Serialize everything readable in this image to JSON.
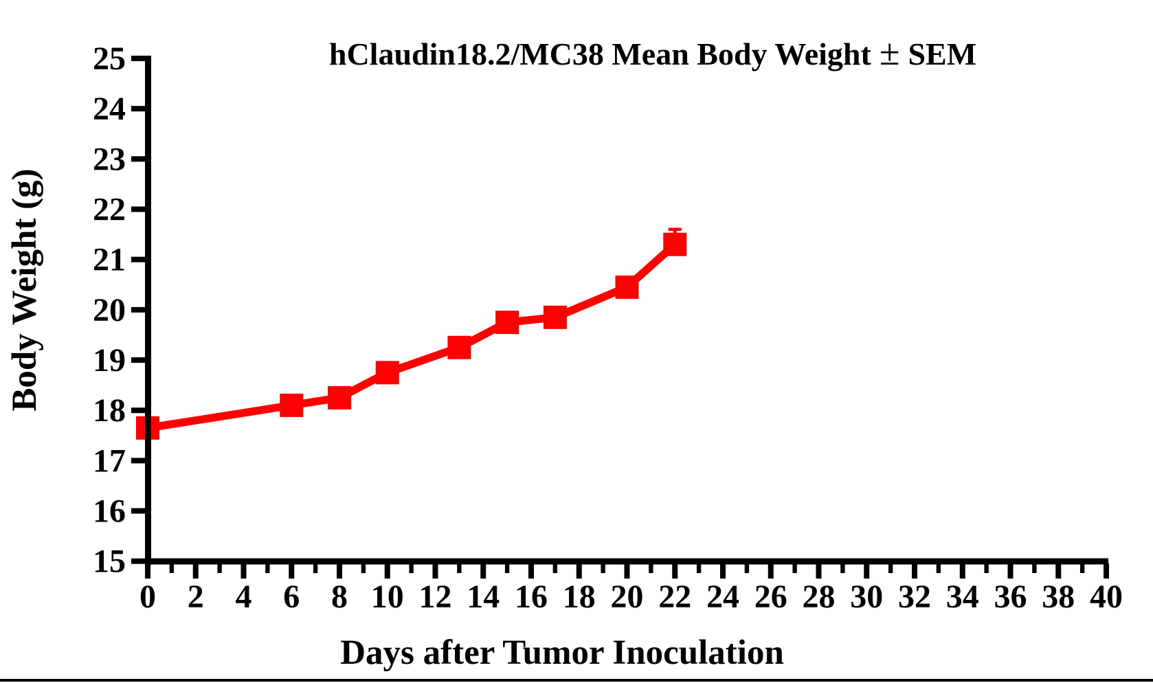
{
  "page": {
    "background": "#ffffff",
    "bottom_border_color": "#000000"
  },
  "chart_data": {
    "type": "line",
    "title": "hClaudin18.2/MC38 Mean Body Weight ± SEM",
    "xlabel": "Days after Tumor Inoculation",
    "ylabel": "Body Weight (g)",
    "xlim": [
      0,
      40
    ],
    "ylim": [
      15,
      25
    ],
    "grid": false,
    "legend": null,
    "axis_color": "#000000",
    "text_color": "#000000",
    "x_major_ticks": [
      0,
      2,
      4,
      6,
      8,
      10,
      12,
      14,
      16,
      18,
      20,
      22,
      24,
      26,
      28,
      30,
      32,
      34,
      36,
      38,
      40
    ],
    "x_minor_ticks": [
      1,
      3,
      5,
      7,
      9,
      11,
      13,
      15,
      17,
      19,
      21,
      23,
      25,
      27,
      29,
      31,
      33,
      35,
      37,
      39
    ],
    "y_ticks": [
      15,
      16,
      17,
      18,
      19,
      20,
      21,
      22,
      23,
      24,
      25
    ],
    "series": [
      {
        "name": "hClaudin18.2/MC38",
        "color": "#ff0000",
        "marker": "square",
        "x": [
          0,
          6,
          8,
          10,
          13,
          15,
          17,
          20,
          22
        ],
        "y": [
          17.65,
          18.1,
          18.25,
          18.75,
          19.25,
          19.75,
          19.85,
          20.45,
          21.3
        ],
        "sem_upper": [
          null,
          null,
          null,
          null,
          null,
          null,
          null,
          null,
          0.3
        ]
      }
    ]
  }
}
